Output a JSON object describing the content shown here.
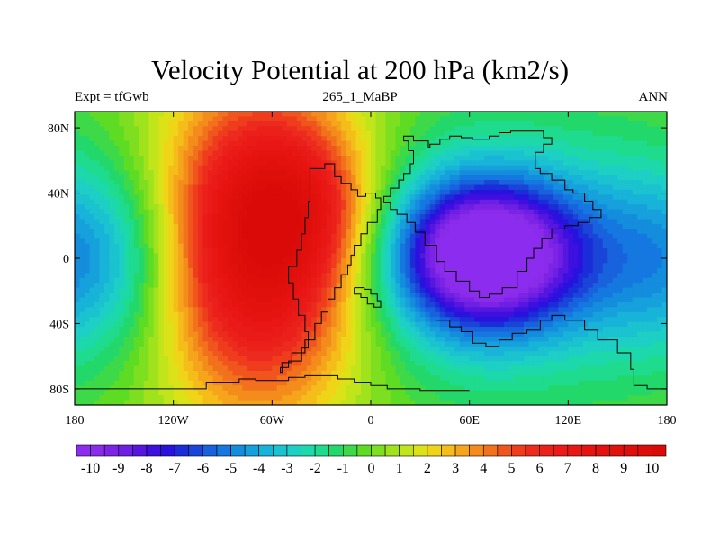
{
  "chart_data": {
    "type": "heatmap",
    "title": "Velocity Potential at 200 hPa (km2/s)",
    "subtitle_left": "Expt = tfGwb",
    "subtitle_center": "265_1_MaBP",
    "subtitle_right": "ANN",
    "x_ticks": [
      {
        "value": -180,
        "label": "180"
      },
      {
        "value": -120,
        "label": "120W"
      },
      {
        "value": -60,
        "label": "60W"
      },
      {
        "value": 0,
        "label": "0"
      },
      {
        "value": 60,
        "label": "60E"
      },
      {
        "value": 120,
        "label": "120E"
      },
      {
        "value": 180,
        "label": "180"
      }
    ],
    "y_ticks": [
      {
        "value": 80,
        "label": "80N"
      },
      {
        "value": 40,
        "label": "40N"
      },
      {
        "value": 0,
        "label": "0"
      },
      {
        "value": -40,
        "label": "40S"
      },
      {
        "value": -80,
        "label": "80S"
      }
    ],
    "xlim": [
      -180,
      180
    ],
    "ylim": [
      -90,
      90
    ],
    "colorbar": {
      "min": -10.5,
      "max": 10.5,
      "step": 0.5,
      "labels": [
        -10,
        -9,
        -8,
        -7,
        -6,
        -5,
        -4,
        -3,
        -2,
        -1,
        0,
        1,
        2,
        3,
        4,
        5,
        6,
        7,
        8,
        9,
        10
      ],
      "colors": [
        "#8c2cef",
        "#8a2bea",
        "#7d23e6",
        "#6d1fe3",
        "#5716e0",
        "#3d10df",
        "#2a12de",
        "#1b2dd9",
        "#1a45d8",
        "#1862dd",
        "#1478e0",
        "#148ddd",
        "#16a0dc",
        "#18b3d8",
        "#1bc2cf",
        "#1dcfc4",
        "#1cd8aa",
        "#1edb8e",
        "#23d86a",
        "#3ed948",
        "#5edc24",
        "#7ddf20",
        "#a0e21c",
        "#c0e51a",
        "#dce218",
        "#efd418",
        "#f4bd1a",
        "#f5a41c",
        "#f48c1c",
        "#f2711c",
        "#f0551e",
        "#ee3c1d",
        "#ec2a1e",
        "#eb201b",
        "#e91a18",
        "#e81715",
        "#e51411",
        "#e3120f",
        "#e0100d",
        "#de0e0b",
        "#dc0c0a",
        "#da0a08"
      ]
    },
    "fields": [
      {
        "name": "positive",
        "center_lon": -65,
        "center_lat": 8,
        "sx": 44,
        "sy": 68,
        "amplitude": 10.3
      },
      {
        "name": "positive-nw-lobe",
        "center_lon": -40,
        "center_lat": 32,
        "sx": 30,
        "sy": 30,
        "amplitude": 2.5
      },
      {
        "name": "negative",
        "center_lon": 70,
        "center_lat": 2,
        "sx": 40,
        "sy": 32,
        "amplitude": -10.2
      },
      {
        "name": "negative-broad",
        "center_lon": 80,
        "center_lat": 0,
        "sx": 90,
        "sy": 60,
        "amplitude": -3.0
      },
      {
        "name": "negative-west",
        "center_lon": -170,
        "center_lat": 0,
        "sx": 40,
        "sy": 40,
        "amplitude": -3.5
      }
    ]
  },
  "coastlines": [
    [
      [
        -37,
        48
      ],
      [
        -28,
        55
      ],
      [
        -22,
        58
      ],
      [
        -18,
        50
      ],
      [
        -12,
        46
      ],
      [
        -8,
        42
      ],
      [
        -3,
        38
      ],
      [
        3,
        40
      ],
      [
        6,
        37
      ],
      [
        4,
        30
      ],
      [
        -2,
        22
      ],
      [
        -6,
        15
      ],
      [
        -10,
        8
      ],
      [
        -12,
        2
      ],
      [
        -14,
        -4
      ],
      [
        -18,
        -10
      ],
      [
        -22,
        -18
      ],
      [
        -26,
        -25
      ],
      [
        -30,
        -33
      ],
      [
        -34,
        -40
      ],
      [
        -40,
        -50
      ],
      [
        -48,
        -58
      ],
      [
        -54,
        -64
      ],
      [
        -55,
        -70
      ],
      [
        -50,
        -67
      ],
      [
        -42,
        -63
      ],
      [
        -38,
        -55
      ],
      [
        -40,
        -45
      ],
      [
        -44,
        -35
      ],
      [
        -47,
        -25
      ],
      [
        -50,
        -15
      ],
      [
        -45,
        -5
      ],
      [
        -42,
        5
      ],
      [
        -40,
        15
      ],
      [
        -38,
        25
      ],
      [
        -37,
        35
      ],
      [
        -37,
        48
      ]
    ],
    [
      [
        -10,
        -18
      ],
      [
        -6,
        -22
      ],
      [
        -2,
        -24
      ],
      [
        2,
        -28
      ],
      [
        6,
        -30
      ],
      [
        4,
        -26
      ],
      [
        0,
        -22
      ],
      [
        -4,
        -19
      ],
      [
        -10,
        -18
      ]
    ],
    [
      [
        26,
        58
      ],
      [
        23,
        66
      ],
      [
        20,
        72
      ],
      [
        26,
        75
      ],
      [
        35,
        72
      ],
      [
        36,
        68
      ],
      [
        42,
        70
      ],
      [
        48,
        73
      ],
      [
        55,
        75
      ],
      [
        62,
        74
      ],
      [
        72,
        73
      ],
      [
        78,
        75
      ],
      [
        85,
        77
      ],
      [
        95,
        78
      ],
      [
        105,
        78
      ],
      [
        110,
        74
      ],
      [
        105,
        70
      ],
      [
        100,
        65
      ],
      [
        100,
        58
      ],
      [
        103,
        55
      ],
      [
        110,
        52
      ],
      [
        118,
        48
      ],
      [
        123,
        42
      ],
      [
        130,
        40
      ],
      [
        135,
        35
      ],
      [
        140,
        30
      ],
      [
        133,
        25
      ],
      [
        126,
        22
      ],
      [
        118,
        20
      ],
      [
        110,
        18
      ],
      [
        104,
        12
      ],
      [
        99,
        6
      ],
      [
        95,
        0
      ],
      [
        89,
        -8
      ],
      [
        80,
        -18
      ],
      [
        72,
        -22
      ],
      [
        66,
        -24
      ],
      [
        60,
        -20
      ],
      [
        52,
        -14
      ],
      [
        45,
        -8
      ],
      [
        40,
        -2
      ],
      [
        33,
        8
      ],
      [
        27,
        16
      ],
      [
        22,
        22
      ],
      [
        16,
        27
      ],
      [
        12,
        30
      ],
      [
        8,
        34
      ],
      [
        12,
        38
      ],
      [
        17,
        43
      ],
      [
        20,
        48
      ],
      [
        24,
        52
      ],
      [
        26,
        58
      ]
    ],
    [
      [
        40,
        -38
      ],
      [
        48,
        -38
      ],
      [
        55,
        -42
      ],
      [
        62,
        -45
      ],
      [
        70,
        -52
      ],
      [
        78,
        -54
      ],
      [
        86,
        -50
      ],
      [
        95,
        -46
      ],
      [
        103,
        -44
      ],
      [
        110,
        -38
      ],
      [
        118,
        -35
      ],
      [
        130,
        -38
      ],
      [
        138,
        -44
      ],
      [
        150,
        -50
      ],
      [
        158,
        -58
      ],
      [
        160,
        -68
      ],
      [
        168,
        -78
      ],
      [
        180,
        -80
      ]
    ],
    [
      [
        -180,
        -80
      ],
      [
        -160,
        -80
      ],
      [
        -130,
        -80
      ],
      [
        -100,
        -80
      ],
      [
        -80,
        -76
      ],
      [
        -70,
        -74
      ],
      [
        -60,
        -75
      ],
      [
        -50,
        -75
      ],
      [
        -40,
        -73
      ],
      [
        -32,
        -72
      ],
      [
        -20,
        -72
      ],
      [
        -10,
        -74
      ],
      [
        0,
        -76
      ],
      [
        10,
        -78
      ],
      [
        30,
        -80
      ],
      [
        60,
        -81
      ]
    ]
  ]
}
